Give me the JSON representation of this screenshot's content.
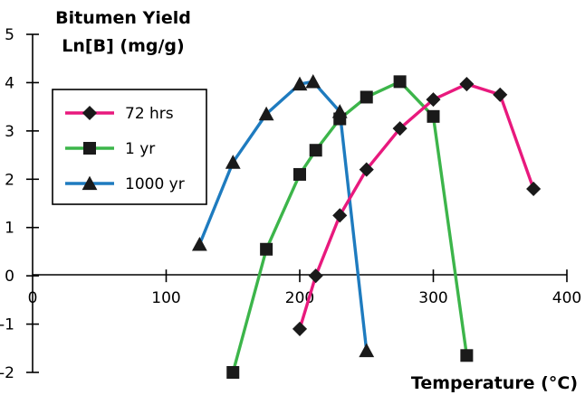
{
  "chart_data": {
    "type": "line",
    "ylabel_lines": [
      "Bitumen Yield",
      "Ln[B] (mg/g)"
    ],
    "xlabel": "Temperature (°C)",
    "xlim": [
      0,
      400
    ],
    "ylim": [
      -2,
      5
    ],
    "xticks": [
      0,
      100,
      200,
      300,
      400
    ],
    "yticks": [
      -2,
      -1,
      0,
      1,
      2,
      3,
      4,
      5
    ],
    "xtick_labels": [
      "0",
      "100",
      "200",
      "300",
      "400"
    ],
    "ytick_labels": [
      "-2",
      "-1",
      "0",
      "1",
      "2",
      "3",
      "4",
      "5"
    ],
    "grid": false,
    "legend_position": "upper-left",
    "series": [
      {
        "name": "72 hrs",
        "color": "#e8197d",
        "marker": "diamond",
        "x": [
          200,
          212,
          230,
          250,
          275,
          300,
          325,
          350,
          375
        ],
        "y": [
          -1.1,
          0.0,
          1.25,
          2.2,
          3.05,
          3.65,
          3.97,
          3.75,
          1.8
        ]
      },
      {
        "name": "1 yr",
        "color": "#3cb54a",
        "marker": "square",
        "x": [
          150,
          175,
          200,
          212,
          230,
          250,
          275,
          300,
          325
        ],
        "y": [
          -2.0,
          0.55,
          2.1,
          2.6,
          3.25,
          3.7,
          4.02,
          3.3,
          -1.65
        ]
      },
      {
        "name": "1000 yr",
        "color": "#1e7bbf",
        "marker": "triangle",
        "x": [
          125,
          150,
          175,
          200,
          210,
          230,
          250
        ],
        "y": [
          0.65,
          2.35,
          3.35,
          3.97,
          4.02,
          3.4,
          -1.55
        ]
      }
    ]
  }
}
